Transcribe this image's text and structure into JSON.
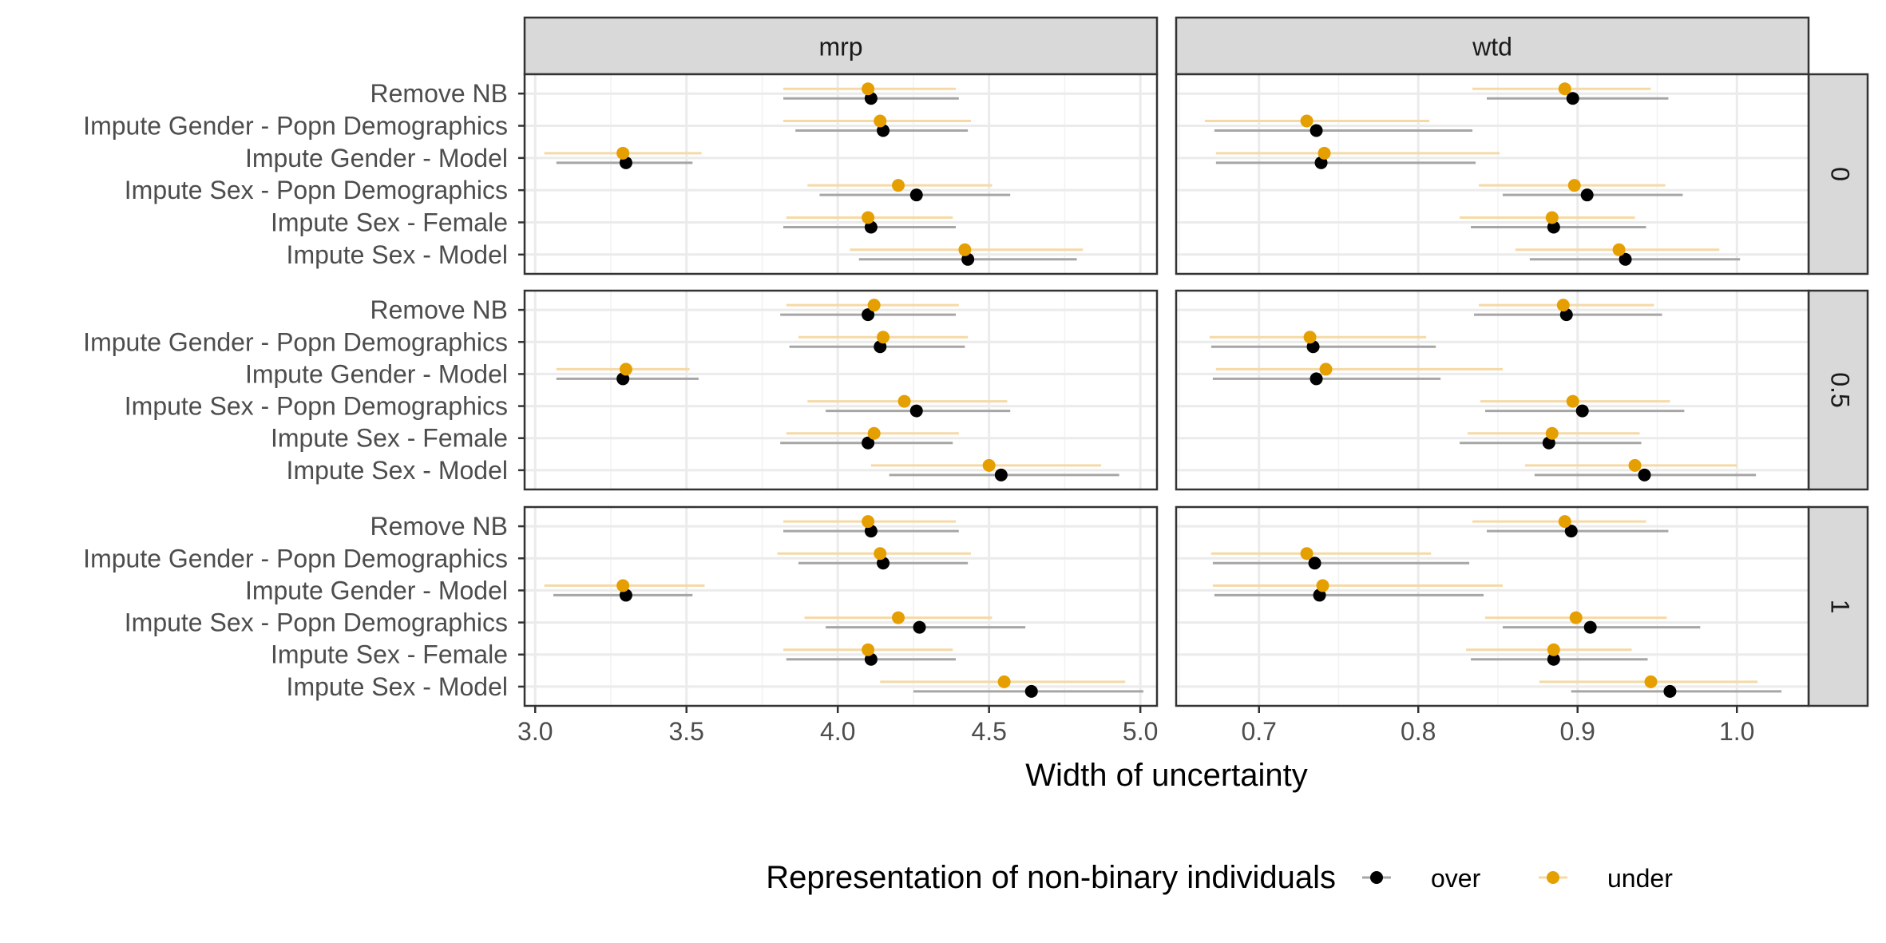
{
  "chart_data": {
    "type": "scatter",
    "xlabel": "Width of uncertainty",
    "ylabel": "",
    "legend": {
      "title": "Representation of non-binary individuals",
      "position": "bottom",
      "items": [
        {
          "name": "over",
          "color": "#000000",
          "interval_color": "#a6a6a6"
        },
        {
          "name": "under",
          "color": "#E69F00",
          "interval_color": "#F5D9A6"
        }
      ]
    },
    "columns": [
      {
        "label": "mrp",
        "xlim": [
          2.965,
          5.055
        ],
        "ticks": [
          3.0,
          3.5,
          4.0,
          4.5,
          5.0
        ],
        "tick_labels": [
          "3.0",
          "3.5",
          "4.0",
          "4.5",
          "5.0"
        ]
      },
      {
        "label": "wtd",
        "xlim": [
          0.648,
          1.045
        ],
        "ticks": [
          0.7,
          0.8,
          0.9,
          1.0
        ],
        "tick_labels": [
          "0.7",
          "0.8",
          "0.9",
          "1.0"
        ]
      }
    ],
    "rows": [
      "0",
      "0.5",
      "1"
    ],
    "categories": [
      "Remove NB",
      "Impute Gender - Popn Demographics",
      "Impute Gender - Model",
      "Impute Sex - Popn Demographics",
      "Impute Sex - Female",
      "Impute Sex - Model"
    ],
    "grid": true,
    "panels": [
      {
        "column": "mrp",
        "row": "0",
        "series": [
          {
            "name": "over",
            "points": [
              [
                4.11,
                3.82,
                4.4
              ],
              [
                4.15,
                3.86,
                4.43
              ],
              [
                3.3,
                3.07,
                3.52
              ],
              [
                4.26,
                3.94,
                4.57
              ],
              [
                4.11,
                3.82,
                4.39
              ],
              [
                4.43,
                4.07,
                4.79
              ]
            ]
          },
          {
            "name": "under",
            "points": [
              [
                4.1,
                3.82,
                4.39
              ],
              [
                4.14,
                3.82,
                4.44
              ],
              [
                3.29,
                3.03,
                3.55
              ],
              [
                4.2,
                3.9,
                4.51
              ],
              [
                4.1,
                3.83,
                4.38
              ],
              [
                4.42,
                4.04,
                4.81
              ]
            ]
          }
        ]
      },
      {
        "column": "wtd",
        "row": "0",
        "series": [
          {
            "name": "over",
            "points": [
              [
                0.897,
                0.843,
                0.957
              ],
              [
                0.736,
                0.672,
                0.834
              ],
              [
                0.739,
                0.673,
                0.836
              ],
              [
                0.906,
                0.853,
                0.966
              ],
              [
                0.885,
                0.833,
                0.943
              ],
              [
                0.93,
                0.87,
                1.002
              ]
            ]
          },
          {
            "name": "under",
            "points": [
              [
                0.892,
                0.834,
                0.946
              ],
              [
                0.73,
                0.666,
                0.807
              ],
              [
                0.741,
                0.673,
                0.851
              ],
              [
                0.898,
                0.838,
                0.955
              ],
              [
                0.884,
                0.826,
                0.936
              ],
              [
                0.926,
                0.861,
                0.989
              ]
            ]
          }
        ]
      },
      {
        "column": "mrp",
        "row": "0.5",
        "series": [
          {
            "name": "over",
            "points": [
              [
                4.1,
                3.81,
                4.39
              ],
              [
                4.14,
                3.84,
                4.42
              ],
              [
                3.29,
                3.07,
                3.54
              ],
              [
                4.26,
                3.96,
                4.57
              ],
              [
                4.1,
                3.81,
                4.38
              ],
              [
                4.54,
                4.17,
                4.93
              ]
            ]
          },
          {
            "name": "under",
            "points": [
              [
                4.12,
                3.83,
                4.4
              ],
              [
                4.15,
                3.87,
                4.43
              ],
              [
                3.3,
                3.07,
                3.51
              ],
              [
                4.22,
                3.9,
                4.56
              ],
              [
                4.12,
                3.83,
                4.4
              ],
              [
                4.5,
                4.11,
                4.87
              ]
            ]
          }
        ]
      },
      {
        "column": "wtd",
        "row": "0.5",
        "series": [
          {
            "name": "over",
            "points": [
              [
                0.893,
                0.835,
                0.953
              ],
              [
                0.734,
                0.67,
                0.811
              ],
              [
                0.736,
                0.671,
                0.814
              ],
              [
                0.903,
                0.842,
                0.967
              ],
              [
                0.882,
                0.826,
                0.94
              ],
              [
                0.942,
                0.873,
                1.012
              ]
            ]
          },
          {
            "name": "under",
            "points": [
              [
                0.891,
                0.838,
                0.948
              ],
              [
                0.732,
                0.669,
                0.805
              ],
              [
                0.742,
                0.673,
                0.853
              ],
              [
                0.897,
                0.839,
                0.958
              ],
              [
                0.884,
                0.831,
                0.939
              ],
              [
                0.936,
                0.867,
                1.0
              ]
            ]
          }
        ]
      },
      {
        "column": "mrp",
        "row": "1",
        "series": [
          {
            "name": "over",
            "points": [
              [
                4.11,
                3.82,
                4.4
              ],
              [
                4.15,
                3.87,
                4.43
              ],
              [
                3.3,
                3.06,
                3.52
              ],
              [
                4.27,
                3.96,
                4.62
              ],
              [
                4.11,
                3.83,
                4.39
              ],
              [
                4.64,
                4.25,
                5.01
              ]
            ]
          },
          {
            "name": "under",
            "points": [
              [
                4.1,
                3.82,
                4.39
              ],
              [
                4.14,
                3.8,
                4.44
              ],
              [
                3.29,
                3.03,
                3.56
              ],
              [
                4.2,
                3.89,
                4.51
              ],
              [
                4.1,
                3.82,
                4.38
              ],
              [
                4.55,
                4.14,
                4.95
              ]
            ]
          }
        ]
      },
      {
        "column": "wtd",
        "row": "1",
        "series": [
          {
            "name": "over",
            "points": [
              [
                0.896,
                0.843,
                0.957
              ],
              [
                0.735,
                0.671,
                0.832
              ],
              [
                0.738,
                0.672,
                0.841
              ],
              [
                0.908,
                0.853,
                0.977
              ],
              [
                0.885,
                0.833,
                0.944
              ],
              [
                0.958,
                0.896,
                1.028
              ]
            ]
          },
          {
            "name": "under",
            "points": [
              [
                0.892,
                0.834,
                0.943
              ],
              [
                0.73,
                0.67,
                0.808
              ],
              [
                0.74,
                0.671,
                0.853
              ],
              [
                0.899,
                0.842,
                0.956
              ],
              [
                0.885,
                0.83,
                0.934
              ],
              [
                0.946,
                0.876,
                1.013
              ]
            ]
          }
        ]
      }
    ]
  }
}
